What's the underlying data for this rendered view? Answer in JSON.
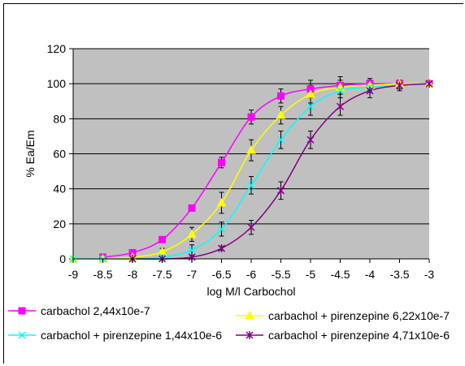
{
  "chart_data": {
    "type": "line",
    "xlabel": "log M/l Carbochol",
    "ylabel": "% Ea/Em",
    "xlim": [
      -9,
      -3
    ],
    "ylim": [
      0,
      120
    ],
    "x_ticks": [
      "-9",
      "-8.5",
      "-8",
      "-7.5",
      "-7",
      "-6.5",
      "-6",
      "-5.5",
      "-5",
      "-4.5",
      "-4",
      "-3.5",
      "-3"
    ],
    "y_ticks": [
      "0",
      "20",
      "40",
      "60",
      "80",
      "100",
      "120"
    ],
    "grid": "horizontal",
    "plot_background": "#c0c0c0",
    "legend_position": "bottom",
    "series": [
      {
        "name": "carbachol 2,44x10e-7",
        "color": "#ff00ff",
        "marker": "square",
        "x": [
          -8.5,
          -8,
          -7.5,
          -7,
          -6.5,
          -6,
          -5.5,
          -5,
          -4.5,
          -4,
          -3.5,
          -3
        ],
        "y": [
          1,
          3.5,
          11,
          29,
          55,
          81,
          93,
          97,
          99,
          100,
          100,
          100
        ],
        "err": [
          0,
          0,
          0,
          0,
          3,
          4,
          4,
          5,
          5,
          3,
          2,
          0
        ]
      },
      {
        "name": "carbachol + pirenzepine 6,22x10e-7",
        "color": "#ffff00",
        "marker": "triangle",
        "x": [
          -9,
          -8.5,
          -8,
          -7.5,
          -7,
          -6.5,
          -6,
          -5.5,
          -5,
          -4.5,
          -4,
          -3.5,
          -3
        ],
        "y": [
          0,
          0,
          1,
          4,
          14,
          32,
          62,
          82,
          94,
          98,
          99,
          100,
          100
        ],
        "err": [
          0,
          0,
          0,
          2,
          4,
          6,
          6,
          5,
          5,
          4,
          3,
          2,
          0
        ]
      },
      {
        "name": "carbachol + pirenzepine 1,44x10e-6",
        "color": "#00ffff",
        "marker": "x",
        "x": [
          -9,
          -8.5,
          -8,
          -7.5,
          -7,
          -6.5,
          -6,
          -5.5,
          -5,
          -4.5,
          -4,
          -3.5,
          -3
        ],
        "y": [
          0,
          0,
          0,
          1,
          5,
          17,
          42,
          68,
          87,
          96,
          98,
          99,
          100
        ],
        "err": [
          0,
          0,
          0,
          1,
          3,
          4,
          5,
          5,
          5,
          4,
          3,
          2,
          0
        ]
      },
      {
        "name": "carbachol + pirenzepine 4,71x10e-6",
        "color": "#800080",
        "marker": "star",
        "x": [
          -8,
          -7.5,
          -7,
          -6.5,
          -6,
          -5.5,
          -5,
          -4.5,
          -4,
          -3.5,
          -3
        ],
        "y": [
          0,
          0,
          1,
          6,
          18,
          39,
          68,
          87,
          96,
          99,
          100
        ],
        "err": [
          0,
          0,
          1,
          1,
          4,
          5,
          5,
          5,
          4,
          3,
          0
        ]
      }
    ]
  }
}
